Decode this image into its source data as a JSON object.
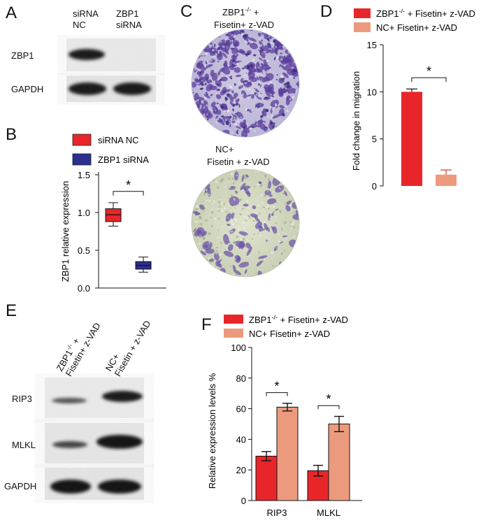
{
  "panels": {
    "a": "A",
    "b": "B",
    "c": "C",
    "d": "D",
    "e": "E",
    "f": "F"
  },
  "blot_a": {
    "lanes": [
      "siRNA\nNC",
      "ZBP1\nsiRNA"
    ],
    "lane_line1": [
      "siRNA",
      "ZBP1"
    ],
    "lane_line2": [
      "NC",
      "siRNA"
    ],
    "rows": [
      "ZBP1",
      "GAPDH"
    ]
  },
  "blot_e": {
    "lanes": [
      "ZBP1-/- + Fisetin+ z-VAD",
      "NC+ Fisetin + z-VAD"
    ],
    "lane_a_line1_main": "ZBP1",
    "lane_a_line1_sup": "-/-",
    "lane_a_line1_tail": " +",
    "lane_a_line2": "Fisetin+ z-VAD",
    "lane_b_line1": "NC+",
    "lane_b_line2": "Fisetin + z-VAD",
    "rows": [
      "RIP3",
      "MLKL",
      "GAPDH"
    ]
  },
  "panel_c": {
    "top_label_line1_main": "ZBP1",
    "top_label_line1_sup": "-/-",
    "top_label_line1_tail": " +",
    "top_label_line2": "Fisetin+ z-VAD",
    "bottom_label_line1": "NC+",
    "bottom_label_line2": "Fisetin + z-VAD"
  },
  "colors": {
    "red": "#e8262a",
    "salmon": "#ec9a7d",
    "navy": "#2b2f8f",
    "stain": "#6a4fa8"
  },
  "chart_data": [
    {
      "id": "B",
      "type": "box",
      "ylabel": "ZBP1 relative expression",
      "ylim": [
        0.0,
        1.5
      ],
      "yticks": [
        "0.0",
        "0.5",
        "1.0",
        "1.5"
      ],
      "legend": [
        "siRNA NC",
        "ZBP1 siRNA"
      ],
      "significance": "*",
      "series": [
        {
          "name": "siRNA NC",
          "color": "#e8262a",
          "min": 0.82,
          "q1": 0.88,
          "median": 0.97,
          "q3": 1.05,
          "max": 1.13
        },
        {
          "name": "ZBP1 siRNA",
          "color": "#2b2f8f",
          "min": 0.21,
          "q1": 0.25,
          "median": 0.3,
          "q3": 0.35,
          "max": 0.41
        }
      ]
    },
    {
      "id": "D",
      "type": "bar",
      "ylabel": "Fold change in migration",
      "ylim": [
        0,
        15
      ],
      "yticks": [
        "0",
        "5",
        "10",
        "15"
      ],
      "legend": [
        "ZBP1-/- + Fisetin+ z-VAD",
        "NC+ Fisetin+ z-VAD"
      ],
      "significance": "*",
      "series": [
        {
          "name": "ZBP1-/- + Fisetin+ z-VAD",
          "value": 10.0,
          "error": 0.3,
          "color": "#e8262a"
        },
        {
          "name": "NC+ Fisetin+ z-VAD",
          "value": 1.2,
          "error": 0.5,
          "color": "#ec9a7d"
        }
      ]
    },
    {
      "id": "F",
      "type": "bar",
      "ylabel": "Relative expression levels  %",
      "ylim": [
        0,
        100
      ],
      "yticks": [
        "0",
        "20",
        "40",
        "60",
        "80",
        "100"
      ],
      "categories": [
        "RIP3",
        "MLKL"
      ],
      "legend": [
        "ZBP1-/- + Fisetin+ z-VAD",
        "NC+ Fisetin+ z-VAD"
      ],
      "significance": [
        "*",
        "*"
      ],
      "series": [
        {
          "name": "ZBP1-/- + Fisetin+ z-VAD",
          "values": [
            29,
            19.5
          ],
          "errors": [
            3,
            3.5
          ],
          "color": "#e8262a"
        },
        {
          "name": "NC+ Fisetin+ z-VAD",
          "values": [
            61,
            50
          ],
          "errors": [
            2.5,
            5
          ],
          "color": "#ec9a7d"
        }
      ]
    }
  ]
}
